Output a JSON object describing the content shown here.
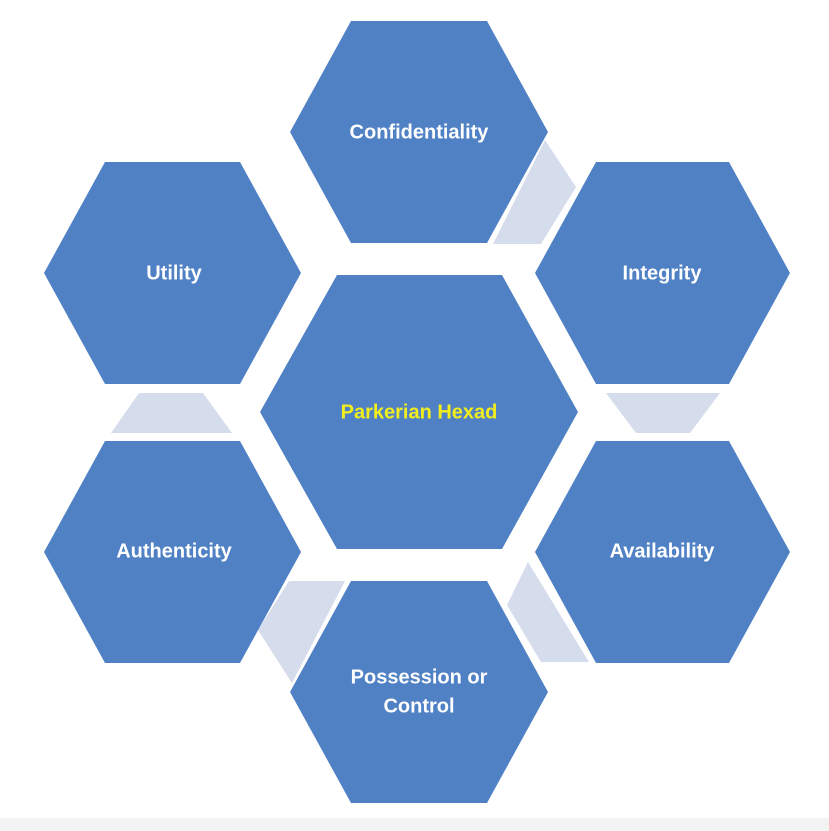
{
  "diagram": {
    "center_label": "Parkerian Hexad",
    "labels": {
      "confidentiality": "Confidentiality",
      "integrity": "Integrity",
      "availability": "Availability",
      "possession_line1": "Possession or",
      "possession_line2": "Control",
      "authenticity": "Authenticity",
      "utility": "Utility"
    }
  },
  "colors": {
    "hex_fill": "#4f81c4",
    "connector_fill": "#d5dcec",
    "label": "#ffffff",
    "center_label": "#f2ee1e"
  }
}
